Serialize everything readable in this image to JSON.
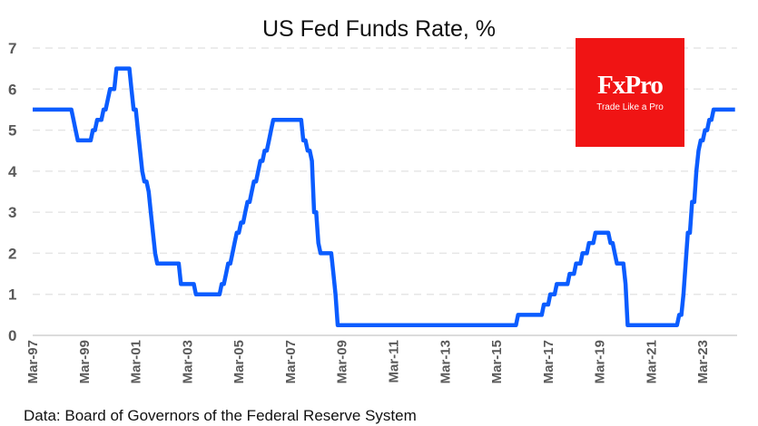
{
  "chart_data": {
    "type": "line",
    "title": "US Fed Funds Rate, %",
    "xlabel": "",
    "ylabel": "",
    "ylim": [
      0,
      7
    ],
    "yticks": [
      "0",
      "1",
      "2",
      "3",
      "4",
      "5",
      "6",
      "7"
    ],
    "xlim": [
      1997.17,
      2024.5
    ],
    "xtick_labels": [
      "Mar-97",
      "Mar-99",
      "Mar-01",
      "Mar-03",
      "Mar-05",
      "Mar-07",
      "Mar-09",
      "Mar-11",
      "Mar-13",
      "Mar-15",
      "Mar-17",
      "Mar-19",
      "Mar-21",
      "Mar-23"
    ],
    "grid": "horizontal dashed",
    "legend": "none",
    "series": [
      {
        "name": "Fed Funds Rate",
        "color": "#0a5cff",
        "steps": [
          [
            1997.17,
            5.5
          ],
          [
            1998.75,
            5.25
          ],
          [
            1998.83,
            5.0
          ],
          [
            1998.88,
            4.75
          ],
          [
            1999.5,
            5.0
          ],
          [
            1999.67,
            5.25
          ],
          [
            1999.88,
            5.5
          ],
          [
            2000.08,
            5.75
          ],
          [
            2000.17,
            6.0
          ],
          [
            2000.38,
            6.5
          ],
          [
            2001.0,
            6.0
          ],
          [
            2001.08,
            5.5
          ],
          [
            2001.25,
            5.0
          ],
          [
            2001.33,
            4.5
          ],
          [
            2001.42,
            4.0
          ],
          [
            2001.5,
            3.75
          ],
          [
            2001.67,
            3.5
          ],
          [
            2001.75,
            3.0
          ],
          [
            2001.83,
            2.5
          ],
          [
            2001.92,
            2.0
          ],
          [
            2001.96,
            1.75
          ],
          [
            2002.87,
            1.25
          ],
          [
            2003.5,
            1.0
          ],
          [
            2004.5,
            1.25
          ],
          [
            2004.62,
            1.5
          ],
          [
            2004.72,
            1.75
          ],
          [
            2004.87,
            2.0
          ],
          [
            2004.95,
            2.25
          ],
          [
            2005.08,
            2.5
          ],
          [
            2005.25,
            2.75
          ],
          [
            2005.4,
            3.0
          ],
          [
            2005.5,
            3.25
          ],
          [
            2005.67,
            3.5
          ],
          [
            2005.75,
            3.75
          ],
          [
            2005.9,
            4.0
          ],
          [
            2006.0,
            4.25
          ],
          [
            2006.17,
            4.5
          ],
          [
            2006.3,
            4.75
          ],
          [
            2006.4,
            5.0
          ],
          [
            2006.5,
            5.25
          ],
          [
            2007.67,
            4.75
          ],
          [
            2007.8,
            4.5
          ],
          [
            2007.95,
            4.25
          ],
          [
            2008.05,
            3.0
          ],
          [
            2008.2,
            2.25
          ],
          [
            2008.33,
            2.0
          ],
          [
            2008.8,
            1.5
          ],
          [
            2008.85,
            1.0
          ],
          [
            2008.96,
            0.25
          ],
          [
            2015.96,
            0.5
          ],
          [
            2016.96,
            0.75
          ],
          [
            2017.2,
            1.0
          ],
          [
            2017.45,
            1.25
          ],
          [
            2017.96,
            1.5
          ],
          [
            2018.2,
            1.75
          ],
          [
            2018.45,
            2.0
          ],
          [
            2018.7,
            2.25
          ],
          [
            2018.96,
            2.5
          ],
          [
            2019.58,
            2.25
          ],
          [
            2019.7,
            2.0
          ],
          [
            2019.83,
            1.75
          ],
          [
            2020.17,
            1.25
          ],
          [
            2020.21,
            0.25
          ],
          [
            2022.2,
            0.5
          ],
          [
            2022.35,
            1.0
          ],
          [
            2022.45,
            1.75
          ],
          [
            2022.57,
            2.5
          ],
          [
            2022.72,
            3.25
          ],
          [
            2022.84,
            4.0
          ],
          [
            2022.96,
            4.5
          ],
          [
            2023.08,
            4.75
          ],
          [
            2023.22,
            5.0
          ],
          [
            2023.37,
            5.25
          ],
          [
            2023.57,
            5.5
          ],
          [
            2024.5,
            5.5
          ]
        ]
      }
    ],
    "source": "Data: Board of Governors of the Federal Reserve System"
  },
  "logo": {
    "brand": "FxPro",
    "tagline": "Trade Like a Pro",
    "color": "#f01414"
  }
}
